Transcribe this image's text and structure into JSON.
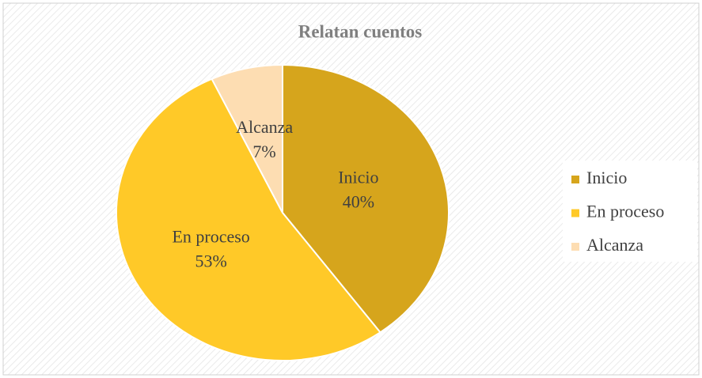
{
  "chart_data": {
    "type": "pie",
    "title": "Relatan cuentos",
    "categories": [
      "Inicio",
      "En proceso",
      "Alcanza"
    ],
    "values": [
      40,
      53,
      7
    ],
    "value_labels": [
      "40%",
      "53%",
      "7%"
    ],
    "colors": [
      "#d6a51c",
      "#ffc928",
      "#fdddb2"
    ],
    "legend": "right"
  }
}
